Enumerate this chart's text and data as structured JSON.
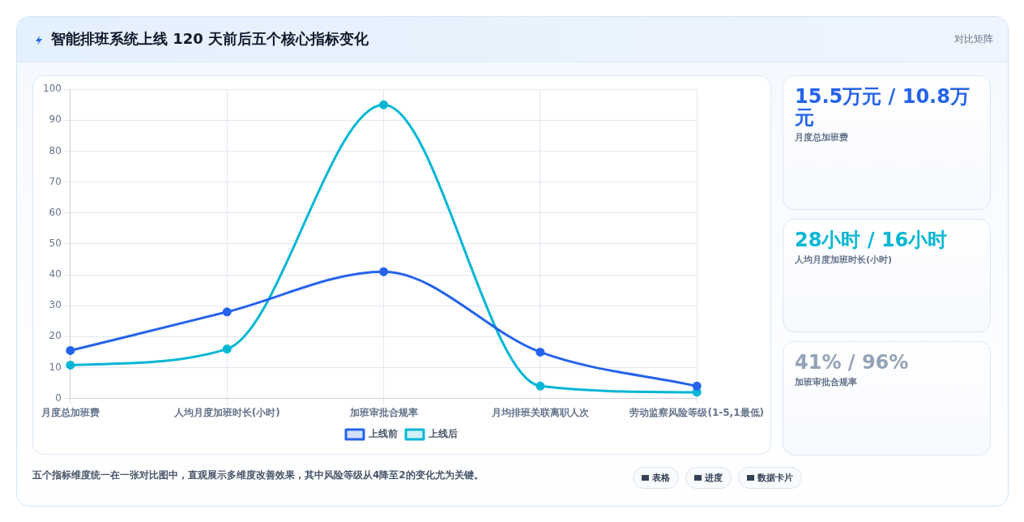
{
  "chart_data": [
    {
      "type": "line",
      "title": "智能排班系统上线 120 天前后五个核心指标变化",
      "categories": [
        "月度总加班费",
        "人均月度加班时长(小时)",
        "加班审批合规率",
        "月均排班关联离职人次",
        "劳动监察风险等级(1-5,1最低)"
      ],
      "series": [
        {
          "name": "上线前",
          "color": "#2563eb",
          "values": [
            15.5,
            28,
            41,
            15,
            4
          ]
        },
        {
          "name": "上线后",
          "color": "#06b6d4",
          "values": [
            10.8,
            16,
            95,
            4,
            2
          ]
        }
      ],
      "ylim": [
        0,
        100
      ],
      "yticks": [
        0,
        10,
        20,
        30,
        40,
        50,
        60,
        70,
        80,
        90,
        100
      ],
      "grid": true,
      "legend": "bottom",
      "marker": "circle",
      "line_style": "solid",
      "annotations": [
        "对比矩阵",
        "五个指标维度统一在一张对比图中，直观展示多维度改善效果，其中风险等级从4降至2的变化尤为关键。",
        "表格",
        "进度",
        "数据卡片"
      ]
    },
    {
      "type": "other",
      "title": "15.5万元 / 10.8万元",
      "subtitle": "月度总加班费",
      "color": "#2563eb"
    },
    {
      "type": "other",
      "title": "28小时 / 16小时",
      "subtitle": "人均月度加班时长(小时)",
      "color": "#06b6d4"
    },
    {
      "type": "other",
      "title": "41% / 96%",
      "subtitle": "加班审批合规率",
      "color": "#94a3b8"
    }
  ]
}
